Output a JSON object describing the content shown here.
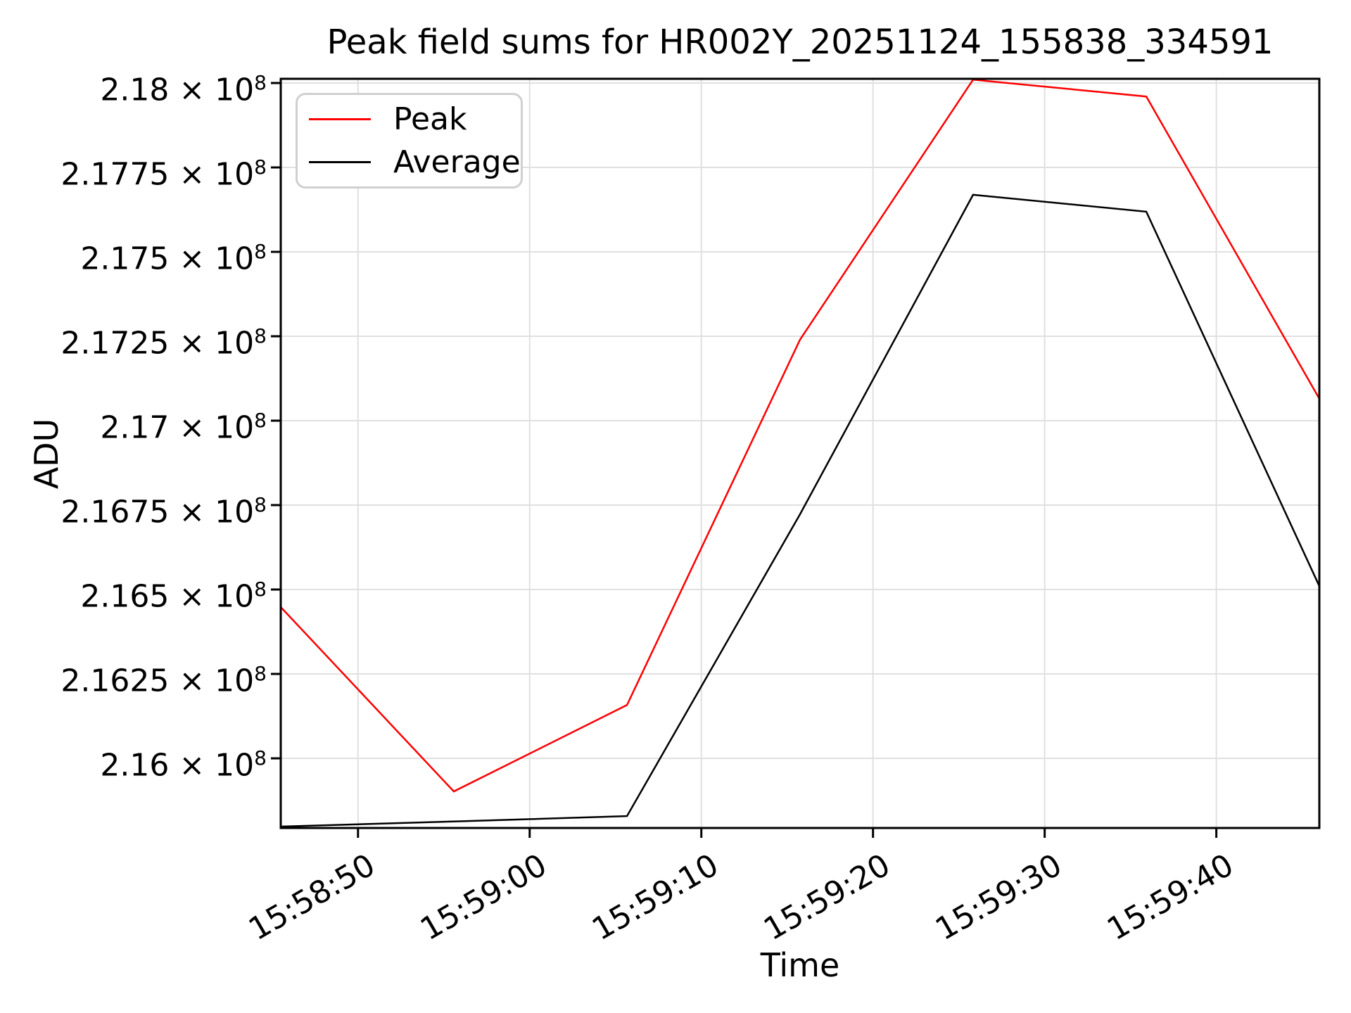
{
  "figure": {
    "background": "#ffffff"
  },
  "chart_data": {
    "type": "line",
    "title": "Peak field sums for HR002Y_20251124_155838_334591",
    "xlabel": "Time",
    "ylabel": "ADU",
    "grid": true,
    "legend_position": "upper left",
    "x_tick_labels": [
      "15:58:50",
      "15:59:00",
      "15:59:10",
      "15:59:20",
      "15:59:30",
      "15:59:40"
    ],
    "x_tick_seconds": [
      57530,
      57540,
      57550,
      57560,
      57570,
      57580
    ],
    "xlim_seconds": [
      57525.5,
      57586.0
    ],
    "x_times": [
      "15:58:45.5",
      "15:58:55.6",
      "15:59:05.7",
      "15:59:15.7",
      "15:59:25.8",
      "15:59:35.9",
      "15:59:46.0"
    ],
    "x_seconds": [
      57525.5,
      57535.58,
      57545.67,
      57555.75,
      57565.83,
      57575.92,
      57586.0
    ],
    "ylim": [
      215793750,
      218012500
    ],
    "y_tick_exponent": "8",
    "y_ticks": [
      {
        "value": 216000000,
        "mantissa": "2.16"
      },
      {
        "value": 216250000,
        "mantissa": "2.1625"
      },
      {
        "value": 216500000,
        "mantissa": "2.165"
      },
      {
        "value": 216750000,
        "mantissa": "2.1675"
      },
      {
        "value": 217000000,
        "mantissa": "2.17"
      },
      {
        "value": 217250000,
        "mantissa": "2.1725"
      },
      {
        "value": 217500000,
        "mantissa": "2.175"
      },
      {
        "value": 217750000,
        "mantissa": "2.1775"
      },
      {
        "value": 218000000,
        "mantissa": "2.18"
      }
    ],
    "series": [
      {
        "name": "Peak",
        "color": "#ff0000",
        "values": [
          216448000,
          215902000,
          216158000,
          217240000,
          218010000,
          217960000,
          217065000
        ]
      },
      {
        "name": "Average",
        "color": "#000000",
        "values": [
          215798000,
          215813000,
          215829000,
          216723000,
          217669000,
          217619000,
          216510000
        ]
      }
    ]
  },
  "colors": {
    "grid": "#e0e0e0",
    "spine": "#000000",
    "text": "#000000",
    "legend_border": "#d0d0d0"
  }
}
